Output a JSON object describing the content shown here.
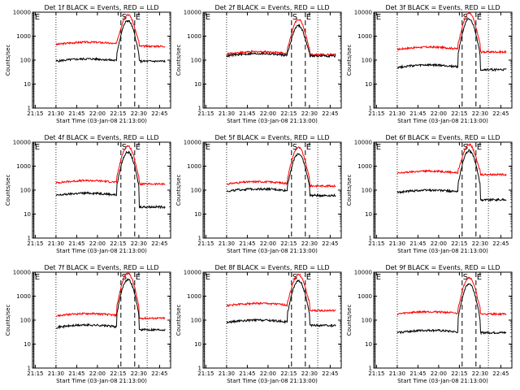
{
  "chart_data": {
    "type": "line",
    "layout": "3x3 grid of small multiples",
    "scale": "log",
    "ylim": [
      1,
      10000
    ],
    "yticks": [
      1,
      10,
      100,
      1000,
      10000
    ],
    "ylabel": "Counts/sec",
    "xlabel": "Start Time (03-Jan-08 21:13:00)",
    "xlim": [
      "21:13",
      "22:53"
    ],
    "xticks": [
      "21:15",
      "21:30",
      "21:45",
      "22:00",
      "22:15",
      "22:30",
      "22:45"
    ],
    "colors": {
      "events": "#000000",
      "lld": "#ff0000"
    },
    "markers": [
      {
        "label": "E",
        "time": "21:14",
        "style": "solid"
      },
      {
        "label": "S",
        "time": "22:17",
        "style": "dashed"
      },
      {
        "label": "E",
        "time": "22:27",
        "style": "dashed"
      }
    ],
    "reference_lines": [
      {
        "time": "21:30",
        "style": "dotted"
      },
      {
        "time": "22:36",
        "style": "dotted"
      }
    ],
    "panels": [
      {
        "title": "Det 1f BLACK = Events, RED = LLD",
        "events_base": 90,
        "lld_base": 450,
        "peak": 8000,
        "events_end": 90,
        "lld_end": 380
      },
      {
        "title": "Det 2f BLACK = Events, RED = LLD",
        "events_base": 150,
        "lld_base": 180,
        "peak": 5000,
        "events_end": 150,
        "lld_end": 170
      },
      {
        "title": "Det 3f BLACK = Events, RED = LLD",
        "events_base": 50,
        "lld_base": 280,
        "peak": 9000,
        "events_end": 40,
        "lld_end": 220
      },
      {
        "title": "Det 4f BLACK = Events, RED = LLD",
        "events_base": 60,
        "lld_base": 200,
        "peak": 7000,
        "events_end": 20,
        "lld_end": 180
      },
      {
        "title": "Det 5f BLACK = Events, RED = LLD",
        "events_base": 90,
        "lld_base": 180,
        "peak": 6000,
        "events_end": 60,
        "lld_end": 150
      },
      {
        "title": "Det 6f BLACK = Events, RED = LLD",
        "events_base": 80,
        "lld_base": 500,
        "peak": 8000,
        "events_end": 40,
        "lld_end": 450
      },
      {
        "title": "Det 7f BLACK = Events, RED = LLD",
        "events_base": 50,
        "lld_base": 150,
        "peak": 9000,
        "events_end": 40,
        "lld_end": 120
      },
      {
        "title": "Det 8f BLACK = Events, RED = LLD",
        "events_base": 80,
        "lld_base": 400,
        "peak": 8000,
        "events_end": 60,
        "lld_end": 250
      },
      {
        "title": "Det 9f BLACK = Events, RED = LLD",
        "events_base": 30,
        "lld_base": 180,
        "peak": 6000,
        "events_end": 30,
        "lld_end": 180
      }
    ]
  }
}
